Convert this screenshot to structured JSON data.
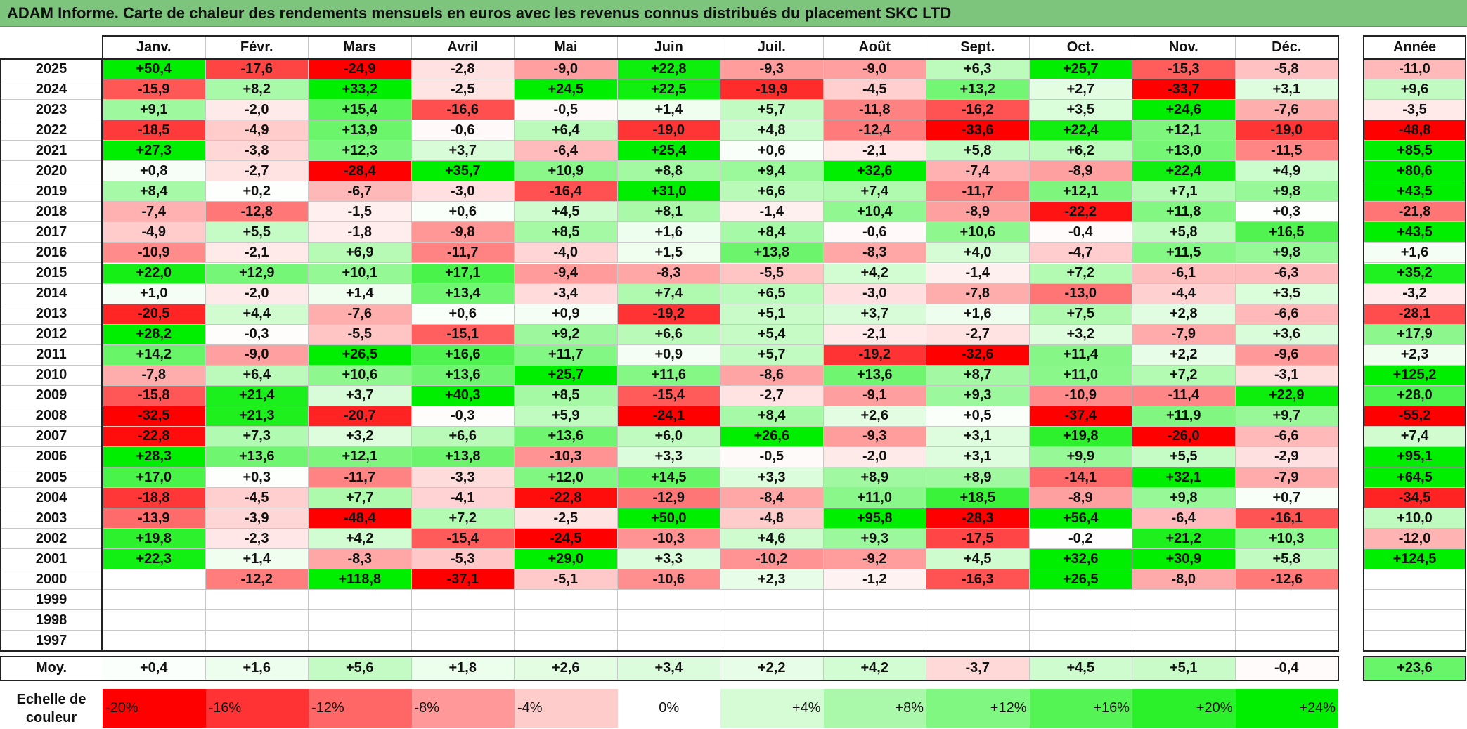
{
  "title": "ADAM Informe. Carte de chaleur des rendements mensuels en euros avec les revenus connus distribués du placement SKC LTD",
  "chart_data": {
    "type": "heatmap",
    "title": "ADAM Informe. Carte de chaleur des rendements mensuels en euros avec les revenus connus distribués du placement SKC LTD",
    "months": [
      "Janv.",
      "Févr.",
      "Mars",
      "Avril",
      "Mai",
      "Juin",
      "Juil.",
      "Août",
      "Sept.",
      "Oct.",
      "Nov.",
      "Déc."
    ],
    "year_header": "Année",
    "rows": [
      {
        "year": "2025",
        "values": [
          "+50,4",
          "-17,6",
          "-24,9",
          "-2,8",
          "-9,0",
          "+22,8",
          "-9,3",
          "-9,0",
          "+6,3",
          "+25,7",
          "-15,3",
          "-5,8"
        ],
        "annual": "-11,0"
      },
      {
        "year": "2024",
        "values": [
          "-15,9",
          "+8,2",
          "+33,2",
          "-2,5",
          "+24,5",
          "+22,5",
          "-19,9",
          "-4,5",
          "+13,2",
          "+2,7",
          "-33,7",
          "+3,1"
        ],
        "annual": "+9,6"
      },
      {
        "year": "2023",
        "values": [
          "+9,1",
          "-2,0",
          "+15,4",
          "-16,6",
          "-0,5",
          "+1,4",
          "+5,7",
          "-11,8",
          "-16,2",
          "+3,5",
          "+24,6",
          "-7,6"
        ],
        "annual": "-3,5"
      },
      {
        "year": "2022",
        "values": [
          "-18,5",
          "-4,9",
          "+13,9",
          "-0,6",
          "+6,4",
          "-19,0",
          "+4,8",
          "-12,4",
          "-33,6",
          "+22,4",
          "+12,1",
          "-19,0"
        ],
        "annual": "-48,8"
      },
      {
        "year": "2021",
        "values": [
          "+27,3",
          "-3,8",
          "+12,3",
          "+3,7",
          "-6,4",
          "+25,4",
          "+0,6",
          "-2,1",
          "+5,8",
          "+6,2",
          "+13,0",
          "-11,5"
        ],
        "annual": "+85,5"
      },
      {
        "year": "2020",
        "values": [
          "+0,8",
          "-2,7",
          "-28,4",
          "+35,7",
          "+10,9",
          "+8,8",
          "+9,4",
          "+32,6",
          "-7,4",
          "-8,9",
          "+22,4",
          "+4,9"
        ],
        "annual": "+80,6"
      },
      {
        "year": "2019",
        "values": [
          "+8,4",
          "+0,2",
          "-6,7",
          "-3,0",
          "-16,4",
          "+31,0",
          "+6,6",
          "+7,4",
          "-11,7",
          "+12,1",
          "+7,1",
          "+9,8"
        ],
        "annual": "+43,5"
      },
      {
        "year": "2018",
        "values": [
          "-7,4",
          "-12,8",
          "-1,5",
          "+0,6",
          "+4,5",
          "+8,1",
          "-1,4",
          "+10,4",
          "-8,9",
          "-22,2",
          "+11,8",
          "+0,3"
        ],
        "annual": "-21,8"
      },
      {
        "year": "2017",
        "values": [
          "-4,9",
          "+5,5",
          "-1,8",
          "-9,8",
          "+8,5",
          "+1,6",
          "+8,4",
          "-0,6",
          "+10,6",
          "-0,4",
          "+5,8",
          "+16,5"
        ],
        "annual": "+43,5"
      },
      {
        "year": "2016",
        "values": [
          "-10,9",
          "-2,1",
          "+6,9",
          "-11,7",
          "-4,0",
          "+1,5",
          "+13,8",
          "-8,3",
          "+4,0",
          "-4,7",
          "+11,5",
          "+9,8"
        ],
        "annual": "+1,6"
      },
      {
        "year": "2015",
        "values": [
          "+22,0",
          "+12,9",
          "+10,1",
          "+17,1",
          "-9,4",
          "-8,3",
          "-5,5",
          "+4,2",
          "-1,4",
          "+7,2",
          "-6,1",
          "-6,3"
        ],
        "annual": "+35,2"
      },
      {
        "year": "2014",
        "values": [
          "+1,0",
          "-2,0",
          "+1,4",
          "+13,4",
          "-3,4",
          "+7,4",
          "+6,5",
          "-3,0",
          "-7,8",
          "-13,0",
          "-4,4",
          "+3,5"
        ],
        "annual": "-3,2"
      },
      {
        "year": "2013",
        "values": [
          "-20,5",
          "+4,4",
          "-7,6",
          "+0,6",
          "+0,9",
          "-19,2",
          "+5,1",
          "+3,7",
          "+1,6",
          "+7,5",
          "+2,8",
          "-6,6"
        ],
        "annual": "-28,1"
      },
      {
        "year": "2012",
        "values": [
          "+28,2",
          "-0,3",
          "-5,5",
          "-15,1",
          "+9,2",
          "+6,6",
          "+5,4",
          "-2,1",
          "-2,7",
          "+3,2",
          "-7,9",
          "+3,6"
        ],
        "annual": "+17,9"
      },
      {
        "year": "2011",
        "values": [
          "+14,2",
          "-9,0",
          "+26,5",
          "+16,6",
          "+11,7",
          "+0,9",
          "+5,7",
          "-19,2",
          "-32,6",
          "+11,4",
          "+2,2",
          "-9,6"
        ],
        "annual": "+2,3"
      },
      {
        "year": "2010",
        "values": [
          "-7,8",
          "+6,4",
          "+10,6",
          "+13,6",
          "+25,7",
          "+11,6",
          "-8,6",
          "+13,6",
          "+8,7",
          "+11,0",
          "+7,2",
          "-3,1"
        ],
        "annual": "+125,2"
      },
      {
        "year": "2009",
        "values": [
          "-15,8",
          "+21,4",
          "+3,7",
          "+40,3",
          "+8,5",
          "-15,4",
          "-2,7",
          "-9,1",
          "+9,3",
          "-10,9",
          "-11,4",
          "+22,9"
        ],
        "annual": "+28,0"
      },
      {
        "year": "2008",
        "values": [
          "-32,5",
          "+21,3",
          "-20,7",
          "-0,3",
          "+5,9",
          "-24,1",
          "+8,4",
          "+2,6",
          "+0,5",
          "-37,4",
          "+11,9",
          "+9,7"
        ],
        "annual": "-55,2"
      },
      {
        "year": "2007",
        "values": [
          "-22,8",
          "+7,3",
          "+3,2",
          "+6,6",
          "+13,6",
          "+6,0",
          "+26,6",
          "-9,3",
          "+3,1",
          "+19,8",
          "-26,0",
          "-6,6"
        ],
        "annual": "+7,4"
      },
      {
        "year": "2006",
        "values": [
          "+28,3",
          "+13,6",
          "+12,1",
          "+13,8",
          "-10,3",
          "+3,3",
          "-0,5",
          "-2,0",
          "+3,1",
          "+9,9",
          "+5,5",
          "-2,9"
        ],
        "annual": "+95,1"
      },
      {
        "year": "2005",
        "values": [
          "+17,0",
          "+0,3",
          "-11,7",
          "-3,3",
          "+12,0",
          "+14,5",
          "+3,3",
          "+8,9",
          "+8,9",
          "-14,1",
          "+32,1",
          "-7,9"
        ],
        "annual": "+64,5"
      },
      {
        "year": "2004",
        "values": [
          "-18,8",
          "-4,5",
          "+7,7",
          "-4,1",
          "-22,8",
          "-12,9",
          "-8,4",
          "+11,0",
          "+18,5",
          "-8,9",
          "+9,8",
          "+0,7"
        ],
        "annual": "-34,5"
      },
      {
        "year": "2003",
        "values": [
          "-13,9",
          "-3,9",
          "-48,4",
          "+7,2",
          "-2,5",
          "+50,0",
          "-4,8",
          "+95,8",
          "-28,3",
          "+56,4",
          "-6,4",
          "-16,1"
        ],
        "annual": "+10,0"
      },
      {
        "year": "2002",
        "values": [
          "+19,8",
          "-2,3",
          "+4,2",
          "-15,4",
          "-24,5",
          "-10,3",
          "+4,6",
          "+9,3",
          "-17,5",
          "-0,2",
          "+21,2",
          "+10,3"
        ],
        "annual": "-12,0"
      },
      {
        "year": "2001",
        "values": [
          "+22,3",
          "+1,4",
          "-8,3",
          "-5,3",
          "+29,0",
          "+3,3",
          "-10,2",
          "-9,2",
          "+4,5",
          "+32,6",
          "+30,9",
          "+5,8"
        ],
        "annual": "+124,5"
      },
      {
        "year": "2000",
        "values": [
          "",
          "-12,2",
          "+118,8",
          "-37,1",
          "-5,1",
          "-10,6",
          "+2,3",
          "-1,2",
          "-16,3",
          "+26,5",
          "-8,0",
          "-12,6"
        ],
        "annual": ""
      },
      {
        "year": "1999",
        "values": [
          "",
          "",
          "",
          "",
          "",
          "",
          "",
          "",
          "",
          "",
          "",
          ""
        ],
        "annual": ""
      },
      {
        "year": "1998",
        "values": [
          "",
          "",
          "",
          "",
          "",
          "",
          "",
          "",
          "",
          "",
          "",
          ""
        ],
        "annual": ""
      },
      {
        "year": "1997",
        "values": [
          "",
          "",
          "",
          "",
          "",
          "",
          "",
          "",
          "",
          "",
          "",
          ""
        ],
        "annual": ""
      }
    ],
    "average": {
      "label": "Moy.",
      "values": [
        "+0,4",
        "+1,6",
        "+5,6",
        "+1,8",
        "+2,6",
        "+3,4",
        "+2,2",
        "+4,2",
        "-3,7",
        "+4,5",
        "+5,1",
        "-0,4"
      ],
      "annual": "+23,6"
    },
    "color_scale": {
      "label": "Echelle de couleur",
      "stops": [
        "-20%",
        "-16%",
        "-12%",
        "-8%",
        "-4%",
        "0%",
        "+4%",
        "+8%",
        "+12%",
        "+16%",
        "+20%",
        "+24%"
      ],
      "colors": {
        "negative": "#ff0000",
        "neutral": "#ffffff",
        "positive": "#00ee00"
      }
    }
  }
}
